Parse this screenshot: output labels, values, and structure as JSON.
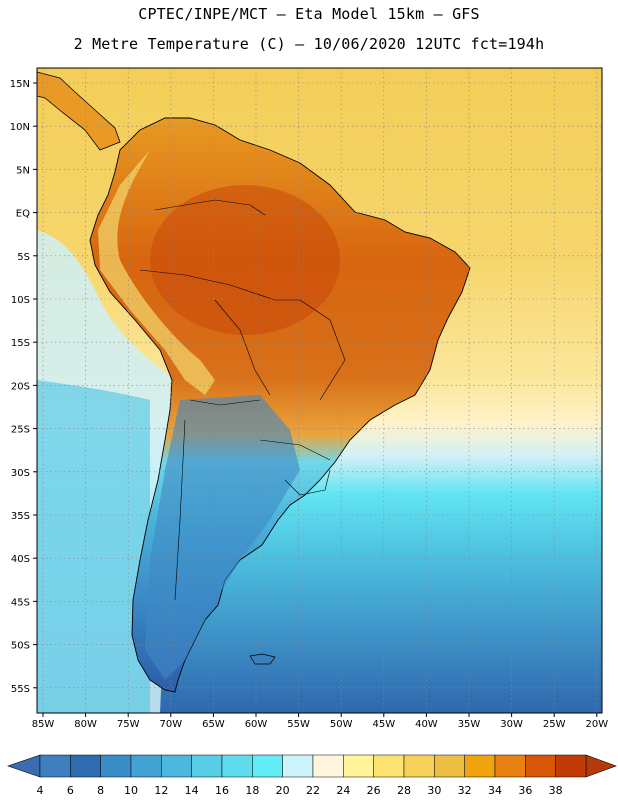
{
  "header": {
    "line1": "CPTEC/INPE/MCT –  Eta Model 15km – GFS",
    "line2": "2 Metre Temperature (C) – 10/06/2020 12UTC fct=194h"
  },
  "map": {
    "region": "South America",
    "lat_labels": [
      "15N",
      "10N",
      "5N",
      "EQ",
      "5S",
      "10S",
      "15S",
      "20S",
      "25S",
      "30S",
      "35S",
      "40S",
      "45S",
      "50S",
      "55S"
    ],
    "lon_labels": [
      "85W",
      "80W",
      "75W",
      "70W",
      "65W",
      "60W",
      "55W",
      "50W",
      "45W",
      "40W",
      "35W",
      "30W",
      "25W",
      "20W"
    ],
    "ocean_color": "#f5cf5a",
    "land_color": "#e08a18"
  },
  "colorbar": {
    "labels": [
      "4",
      "6",
      "8",
      "10",
      "12",
      "14",
      "16",
      "18",
      "20",
      "22",
      "24",
      "26",
      "28",
      "30",
      "32",
      "34",
      "36",
      "38"
    ],
    "colors": [
      "#3f7fc0",
      "#2f6cb2",
      "#3a8ec8",
      "#43a3d4",
      "#4db8de",
      "#58cde6",
      "#5fdcee",
      "#62ecf6",
      "#cdf3fb",
      "#fff6dd",
      "#fff49a",
      "#fce26e",
      "#f6d15a",
      "#ecbf42",
      "#f0a30f",
      "#e88112",
      "#d95608",
      "#c23a05"
    ],
    "low_arrow_color": "#3a6db0",
    "high_arrow_color": "#b53a0a"
  }
}
